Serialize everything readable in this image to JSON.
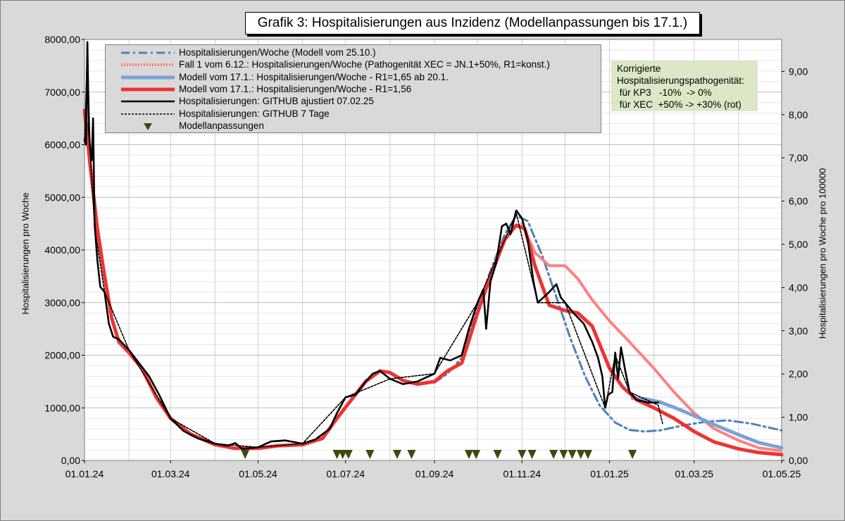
{
  "chart_data": {
    "type": "line",
    "title": "Grafik 3: Hospitalisierungen aus Inzidenz (Modellanpassungen bis 17.1.)",
    "ylabel": "Hospitalisierungen pro Woche",
    "y2label": "Hospitalisierungen pro Woche pro 100000",
    "ylim": [
      0,
      8000
    ],
    "y2lim": [
      0,
      9.74
    ],
    "xlim": [
      "2024-01-01",
      "2025-05-01"
    ],
    "x_ticks": [
      "01.01.24",
      "01.03.24",
      "01.05.24",
      "01.07.24",
      "01.09.24",
      "01.11.24",
      "01.01.25",
      "01.03.25",
      "01.05.25"
    ],
    "y_ticks": [
      "0,00",
      "1000,00",
      "2000,00",
      "3000,00",
      "4000,00",
      "5000,00",
      "6000,00",
      "7000,00",
      "8000,00"
    ],
    "y2_ticks": [
      "0,00",
      "1,00",
      "2,00",
      "3,00",
      "4,00",
      "5,00",
      "6,00",
      "7,00",
      "8,00",
      "9,00"
    ],
    "grid": true,
    "legend_position": "top-left",
    "series": [
      {
        "name": "Hospitalisierungen/Woche (Modell vom 25.10.)",
        "color": "#4f81bd",
        "style": "dashdot",
        "points": [
          [
            "2024-09-01",
            1480
          ],
          [
            "2024-09-10",
            1650
          ],
          [
            "2024-09-20",
            1950
          ],
          [
            "2024-10-01",
            2900
          ],
          [
            "2024-10-10",
            3600
          ],
          [
            "2024-10-20",
            4300
          ],
          [
            "2024-10-28",
            4650
          ],
          [
            "2024-11-05",
            4550
          ],
          [
            "2024-11-15",
            3900
          ],
          [
            "2024-11-25",
            3100
          ],
          [
            "2024-12-05",
            2300
          ],
          [
            "2024-12-15",
            1600
          ],
          [
            "2024-12-25",
            1050
          ],
          [
            "2025-01-05",
            720
          ],
          [
            "2025-01-15",
            580
          ],
          [
            "2025-01-25",
            550
          ],
          [
            "2025-02-05",
            570
          ],
          [
            "2025-02-20",
            660
          ],
          [
            "2025-03-10",
            740
          ],
          [
            "2025-03-25",
            760
          ],
          [
            "2025-04-10",
            700
          ],
          [
            "2025-05-01",
            570
          ]
        ]
      },
      {
        "name": "Fall 1 vom 6.12.: Hospitalisierungen/Woche (Pathogenität XEC = JN.1+50%, R1=konst.)",
        "color": "#ff7f7f",
        "style": "dotted",
        "points": [
          [
            "2024-11-01",
            4500
          ],
          [
            "2024-11-10",
            3950
          ],
          [
            "2024-11-20",
            3700
          ],
          [
            "2024-12-01",
            3700
          ],
          [
            "2024-12-10",
            3450
          ],
          [
            "2024-12-20",
            3050
          ],
          [
            "2025-01-01",
            2650
          ],
          [
            "2025-01-15",
            2250
          ],
          [
            "2025-02-01",
            1750
          ],
          [
            "2025-02-15",
            1300
          ],
          [
            "2025-03-01",
            900
          ],
          [
            "2025-03-15",
            600
          ],
          [
            "2025-04-01",
            380
          ],
          [
            "2025-04-15",
            240
          ],
          [
            "2025-05-01",
            180
          ]
        ]
      },
      {
        "name": "Modell vom 17.1.: Hospitalisierungen/Woche - R1=1,65 ab 20.1.",
        "color": "#7aa3d6",
        "style": "solid",
        "points": [
          [
            "2025-01-17",
            1180
          ],
          [
            "2025-01-25",
            1170
          ],
          [
            "2025-02-05",
            1110
          ],
          [
            "2025-02-15",
            1010
          ],
          [
            "2025-03-01",
            850
          ],
          [
            "2025-03-15",
            680
          ],
          [
            "2025-04-01",
            490
          ],
          [
            "2025-04-15",
            340
          ],
          [
            "2025-05-01",
            240
          ]
        ]
      },
      {
        "name": "Modell vom 17.1.: Hospitalisierungen/Woche  - R1=1,56",
        "color": "#ee3333",
        "style": "solid",
        "points": [
          [
            "2024-01-01",
            6650
          ],
          [
            "2024-01-05",
            5600
          ],
          [
            "2024-01-10",
            4400
          ],
          [
            "2024-01-15",
            3500
          ],
          [
            "2024-01-20",
            2700
          ],
          [
            "2024-01-25",
            2250
          ],
          [
            "2024-02-01",
            2050
          ],
          [
            "2024-02-10",
            1750
          ],
          [
            "2024-02-20",
            1200
          ],
          [
            "2024-03-01",
            800
          ],
          [
            "2024-03-15",
            500
          ],
          [
            "2024-04-01",
            300
          ],
          [
            "2024-04-15",
            230
          ],
          [
            "2024-05-01",
            230
          ],
          [
            "2024-05-15",
            280
          ],
          [
            "2024-06-01",
            300
          ],
          [
            "2024-06-15",
            420
          ],
          [
            "2024-06-25",
            800
          ],
          [
            "2024-07-05",
            1150
          ],
          [
            "2024-07-15",
            1500
          ],
          [
            "2024-07-25",
            1700
          ],
          [
            "2024-08-01",
            1670
          ],
          [
            "2024-08-10",
            1520
          ],
          [
            "2024-08-20",
            1450
          ],
          [
            "2024-09-01",
            1500
          ],
          [
            "2024-09-10",
            1700
          ],
          [
            "2024-09-20",
            1850
          ],
          [
            "2024-10-01",
            2800
          ],
          [
            "2024-10-10",
            3500
          ],
          [
            "2024-10-20",
            4200
          ],
          [
            "2024-10-28",
            4470
          ],
          [
            "2024-11-03",
            4400
          ],
          [
            "2024-11-10",
            3700
          ],
          [
            "2024-11-20",
            2950
          ],
          [
            "2024-12-01",
            2850
          ],
          [
            "2024-12-10",
            2800
          ],
          [
            "2024-12-20",
            2550
          ],
          [
            "2025-01-01",
            1750
          ],
          [
            "2025-01-10",
            1400
          ],
          [
            "2025-01-20",
            1150
          ],
          [
            "2025-02-01",
            1000
          ],
          [
            "2025-02-15",
            800
          ],
          [
            "2025-03-01",
            550
          ],
          [
            "2025-03-15",
            350
          ],
          [
            "2025-04-01",
            220
          ],
          [
            "2025-04-15",
            150
          ],
          [
            "2025-05-01",
            110
          ]
        ]
      },
      {
        "name": "Hospitalisierungen: GITHUB ajustiert  07.02.25",
        "color": "#000000",
        "style": "solid",
        "points": [
          [
            "2024-01-01",
            6100
          ],
          [
            "2024-01-02",
            6000
          ],
          [
            "2024-01-03",
            7950
          ],
          [
            "2024-01-04",
            6300
          ],
          [
            "2024-01-05",
            5900
          ],
          [
            "2024-01-06",
            5700
          ],
          [
            "2024-01-07",
            6500
          ],
          [
            "2024-01-08",
            4500
          ],
          [
            "2024-01-10",
            3800
          ],
          [
            "2024-01-12",
            3300
          ],
          [
            "2024-01-15",
            3200
          ],
          [
            "2024-01-18",
            2600
          ],
          [
            "2024-01-21",
            2350
          ],
          [
            "2024-01-25",
            2300
          ],
          [
            "2024-02-01",
            2100
          ],
          [
            "2024-02-08",
            1850
          ],
          [
            "2024-02-15",
            1600
          ],
          [
            "2024-02-22",
            1250
          ],
          [
            "2024-03-01",
            800
          ],
          [
            "2024-03-10",
            560
          ],
          [
            "2024-03-20",
            420
          ],
          [
            "2024-04-01",
            320
          ],
          [
            "2024-04-10",
            280
          ],
          [
            "2024-04-15",
            330
          ],
          [
            "2024-04-20",
            220
          ],
          [
            "2024-05-01",
            250
          ],
          [
            "2024-05-10",
            360
          ],
          [
            "2024-05-20",
            380
          ],
          [
            "2024-06-01",
            320
          ],
          [
            "2024-06-10",
            400
          ],
          [
            "2024-06-20",
            600
          ],
          [
            "2024-06-25",
            900
          ],
          [
            "2024-07-01",
            1200
          ],
          [
            "2024-07-08",
            1250
          ],
          [
            "2024-07-15",
            1500
          ],
          [
            "2024-07-20",
            1650
          ],
          [
            "2024-07-25",
            1700
          ],
          [
            "2024-08-01",
            1550
          ],
          [
            "2024-08-10",
            1450
          ],
          [
            "2024-08-20",
            1500
          ],
          [
            "2024-09-01",
            1650
          ],
          [
            "2024-09-05",
            1950
          ],
          [
            "2024-09-12",
            1900
          ],
          [
            "2024-09-20",
            2000
          ],
          [
            "2024-09-25",
            2500
          ],
          [
            "2024-10-01",
            3000
          ],
          [
            "2024-10-05",
            3250
          ],
          [
            "2024-10-07",
            2500
          ],
          [
            "2024-10-10",
            3400
          ],
          [
            "2024-10-14",
            3750
          ],
          [
            "2024-10-18",
            4450
          ],
          [
            "2024-10-21",
            4500
          ],
          [
            "2024-10-24",
            4300
          ],
          [
            "2024-10-28",
            4750
          ],
          [
            "2024-11-01",
            4600
          ],
          [
            "2024-11-05",
            4200
          ],
          [
            "2024-11-09",
            3400
          ],
          [
            "2024-11-12",
            3000
          ],
          [
            "2024-11-16",
            3100
          ],
          [
            "2024-11-20",
            3200
          ],
          [
            "2024-11-25",
            3350
          ],
          [
            "2024-11-28",
            3100
          ],
          [
            "2024-12-01",
            3000
          ],
          [
            "2024-12-07",
            2800
          ],
          [
            "2024-12-14",
            2600
          ],
          [
            "2024-12-20",
            2250
          ],
          [
            "2024-12-24",
            1950
          ],
          [
            "2024-12-27",
            1600
          ],
          [
            "2024-12-29",
            1000
          ],
          [
            "2024-12-31",
            1250
          ],
          [
            "2025-01-03",
            1300
          ],
          [
            "2025-01-05",
            2050
          ],
          [
            "2025-01-07",
            1550
          ],
          [
            "2025-01-09",
            2150
          ],
          [
            "2025-01-12",
            1700
          ],
          [
            "2025-01-15",
            1300
          ],
          [
            "2025-01-20",
            1150
          ],
          [
            "2025-01-28",
            1100
          ],
          [
            "2025-02-04",
            1100
          ]
        ]
      },
      {
        "name": "Hospitalisierungen: GITHUB 7 Tage",
        "color": "#000000",
        "style": "dashed",
        "points": [
          [
            "2024-01-01",
            6050
          ],
          [
            "2024-01-03",
            7800
          ],
          [
            "2024-01-05",
            5850
          ],
          [
            "2024-01-08",
            4450
          ],
          [
            "2024-01-15",
            3200
          ],
          [
            "2024-02-01",
            2100
          ],
          [
            "2024-03-01",
            800
          ],
          [
            "2024-04-01",
            320
          ],
          [
            "2024-05-01",
            250
          ],
          [
            "2024-06-01",
            320
          ],
          [
            "2024-07-01",
            1200
          ],
          [
            "2024-08-01",
            1550
          ],
          [
            "2024-09-01",
            1650
          ],
          [
            "2024-10-01",
            3000
          ],
          [
            "2024-10-28",
            4700
          ],
          [
            "2024-11-12",
            3000
          ],
          [
            "2024-12-01",
            3000
          ],
          [
            "2024-12-29",
            1000
          ],
          [
            "2025-01-05",
            2000
          ],
          [
            "2025-01-15",
            1300
          ],
          [
            "2025-02-04",
            1050
          ],
          [
            "2025-02-07",
            700
          ]
        ]
      }
    ],
    "markers": {
      "name": "Modellanpassungen",
      "color": "#3c4a0f",
      "dates": [
        "2024-04-22",
        "2024-06-25",
        "2024-06-29",
        "2024-07-03",
        "2024-07-18",
        "2024-08-06",
        "2024-08-16",
        "2024-09-25",
        "2024-09-30",
        "2024-10-15",
        "2024-11-01",
        "2024-11-08",
        "2024-11-23",
        "2024-11-30",
        "2024-12-06",
        "2024-12-12",
        "2024-12-17",
        "2025-01-17"
      ]
    },
    "annotation": [
      "Korrigierte",
      "Hospitalisierungspathogenität:",
      " für KP3   -10%  -> 0%",
      " für XEC  +50% -> +30% (rot)"
    ]
  }
}
